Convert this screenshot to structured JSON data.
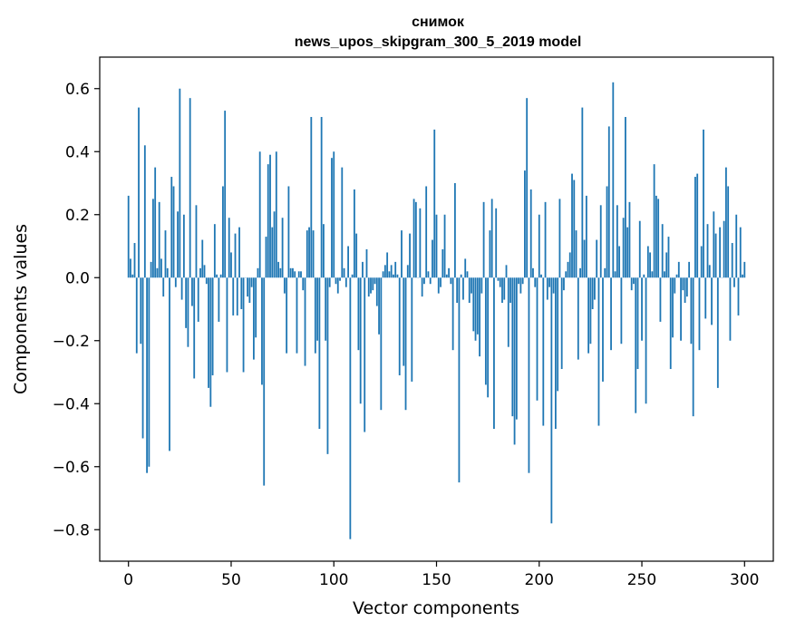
{
  "chart_data": {
    "type": "bar",
    "title_line1": "снимок",
    "title_line2": "news_upos_skipgram_300_5_2019 model",
    "xlabel": "Vector components",
    "ylabel": "Components values",
    "xlim": [
      -14,
      314
    ],
    "ylim": [
      -0.9,
      0.7
    ],
    "xticks": [
      0,
      50,
      100,
      150,
      200,
      250,
      300
    ],
    "yticks": [
      -0.8,
      -0.6,
      -0.4,
      -0.2,
      0.0,
      0.2,
      0.4,
      0.6
    ],
    "ytick_labels": [
      "−0.8",
      "−0.6",
      "−0.4",
      "−0.2",
      "0.0",
      "0.2",
      "0.4",
      "0.6"
    ],
    "bar_color": "#1f77b4",
    "grid": false,
    "values": [
      0.26,
      0.06,
      0.01,
      0.11,
      -0.24,
      0.54,
      -0.21,
      -0.51,
      0.42,
      -0.62,
      -0.6,
      0.05,
      0.25,
      0.35,
      0.03,
      0.24,
      0.06,
      -0.06,
      0.15,
      0.03,
      -0.55,
      0.32,
      0.29,
      -0.03,
      0.21,
      0.6,
      -0.07,
      0.2,
      -0.16,
      -0.22,
      0.57,
      -0.09,
      -0.32,
      0.23,
      -0.14,
      0.03,
      0.12,
      0.04,
      -0.02,
      -0.35,
      -0.41,
      -0.31,
      0.17,
      0.01,
      -0.14,
      0.01,
      0.29,
      0.53,
      -0.3,
      0.19,
      0.08,
      -0.12,
      0.14,
      -0.12,
      0.16,
      -0.1,
      -0.3,
      0.0,
      -0.06,
      -0.08,
      -0.03,
      -0.26,
      -0.19,
      0.03,
      0.4,
      -0.34,
      -0.66,
      0.13,
      0.36,
      0.39,
      0.16,
      0.21,
      0.4,
      0.05,
      0.03,
      0.19,
      -0.05,
      -0.24,
      0.29,
      0.03,
      0.03,
      0.02,
      -0.24,
      0.02,
      0.02,
      -0.04,
      -0.28,
      0.15,
      0.16,
      0.51,
      0.15,
      -0.24,
      -0.2,
      -0.48,
      0.51,
      0.17,
      -0.2,
      -0.56,
      -0.03,
      0.38,
      0.4,
      -0.02,
      -0.05,
      -0.01,
      0.35,
      0.03,
      -0.03,
      0.1,
      -0.83,
      0.01,
      0.28,
      0.14,
      -0.23,
      -0.4,
      0.05,
      -0.49,
      0.09,
      -0.06,
      -0.05,
      -0.04,
      -0.02,
      -0.09,
      -0.18,
      -0.42,
      0.02,
      0.04,
      0.08,
      0.02,
      0.04,
      0.01,
      0.05,
      0.01,
      -0.31,
      0.15,
      -0.28,
      -0.42,
      0.04,
      0.14,
      -0.33,
      0.25,
      0.24,
      0.0,
      0.22,
      -0.06,
      -0.02,
      0.29,
      0.02,
      -0.02,
      0.12,
      0.47,
      0.2,
      -0.05,
      -0.03,
      0.09,
      0.2,
      0.01,
      0.03,
      -0.02,
      -0.23,
      0.3,
      -0.08,
      -0.65,
      0.01,
      -0.07,
      0.06,
      0.02,
      -0.08,
      -0.05,
      -0.17,
      -0.2,
      -0.18,
      -0.25,
      -0.05,
      0.24,
      -0.34,
      -0.38,
      0.15,
      0.25,
      -0.48,
      0.22,
      -0.01,
      -0.03,
      -0.08,
      -0.07,
      0.04,
      -0.22,
      -0.08,
      -0.44,
      -0.53,
      -0.45,
      -0.02,
      -0.05,
      -0.02,
      0.34,
      0.57,
      -0.62,
      0.28,
      0.03,
      -0.03,
      -0.39,
      0.2,
      0.01,
      -0.47,
      0.24,
      -0.07,
      -0.03,
      -0.78,
      -0.05,
      -0.48,
      -0.36,
      0.25,
      -0.29,
      -0.04,
      0.02,
      0.05,
      0.08,
      0.33,
      0.31,
      0.15,
      -0.26,
      0.03,
      0.54,
      0.12,
      0.26,
      -0.24,
      -0.21,
      -0.1,
      -0.07,
      0.12,
      -0.47,
      0.23,
      -0.33,
      0.03,
      0.29,
      0.48,
      -0.23,
      0.62,
      0.02,
      0.23,
      0.1,
      -0.21,
      0.19,
      0.51,
      0.16,
      0.24,
      -0.04,
      -0.02,
      -0.43,
      -0.29,
      0.18,
      -0.2,
      0.01,
      -0.4,
      0.1,
      0.08,
      0.02,
      0.36,
      0.26,
      0.25,
      -0.14,
      0.17,
      0.02,
      0.08,
      0.13,
      -0.29,
      -0.19,
      -0.05,
      0.01,
      0.05,
      -0.2,
      -0.04,
      -0.08,
      -0.06,
      0.05,
      -0.21,
      -0.44,
      0.32,
      0.33,
      -0.23,
      0.1,
      0.47,
      -0.13,
      0.17,
      0.04,
      -0.15,
      0.21,
      0.14,
      -0.35,
      0.16,
      0.0,
      0.18,
      0.35,
      0.29,
      -0.2,
      0.11,
      -0.03,
      0.2,
      -0.12,
      0.16,
      0.01,
      0.05
    ]
  }
}
